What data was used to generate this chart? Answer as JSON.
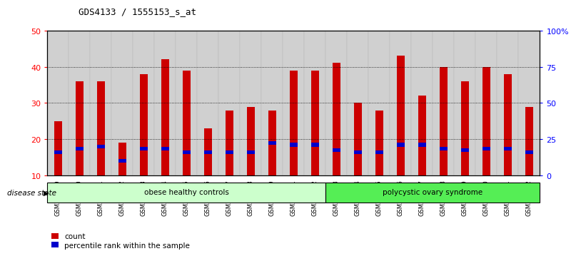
{
  "title": "GDS4133 / 1555153_s_at",
  "samples": [
    "GSM201849",
    "GSM201850",
    "GSM201851",
    "GSM201852",
    "GSM201853",
    "GSM201854",
    "GSM201855",
    "GSM201856",
    "GSM201857",
    "GSM201858",
    "GSM201859",
    "GSM201861",
    "GSM201862",
    "GSM201863",
    "GSM201864",
    "GSM201865",
    "GSM201866",
    "GSM201867",
    "GSM201868",
    "GSM201869",
    "GSM201870",
    "GSM201871",
    "GSM201872"
  ],
  "counts": [
    25,
    36,
    36,
    19,
    38,
    42,
    39,
    23,
    28,
    29,
    28,
    39,
    39,
    41,
    30,
    28,
    43,
    32,
    40,
    36,
    40,
    38,
    29
  ],
  "percentile_values": [
    16.5,
    17.5,
    18.0,
    14.0,
    17.5,
    17.5,
    16.5,
    16.5,
    16.5,
    16.5,
    19.0,
    18.5,
    18.5,
    17.0,
    16.5,
    16.5,
    18.5,
    18.5,
    17.5,
    17.0,
    17.5,
    17.5,
    16.5
  ],
  "bar_color": "#cc0000",
  "percentile_color": "#0000cc",
  "ylim_left": [
    10,
    50
  ],
  "ylim_right": [
    0,
    100
  ],
  "yticks_left": [
    10,
    20,
    30,
    40,
    50
  ],
  "yticks_right": [
    0,
    25,
    50,
    75,
    100
  ],
  "ytick_labels_right": [
    "0",
    "25",
    "50",
    "75",
    "100%"
  ],
  "group1_count": 13,
  "group1_label": "obese healthy controls",
  "group2_label": "polycystic ovary syndrome",
  "group1_color": "#ccffcc",
  "group2_color": "#55ee55",
  "disease_state_label": "disease state",
  "legend_count_label": "count",
  "legend_percentile_label": "percentile rank within the sample",
  "bar_width": 0.35,
  "title_fontsize": 9,
  "tick_label_size": 6.0
}
